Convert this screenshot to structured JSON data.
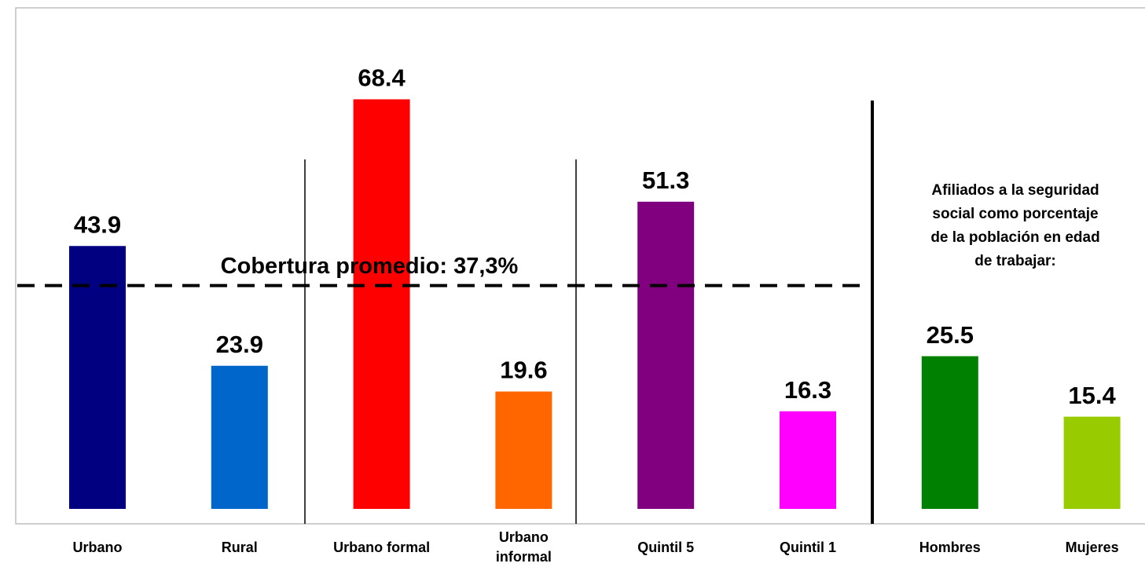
{
  "chart_data": {
    "type": "bar",
    "categories": [
      "Urbano",
      "Rural",
      "Urbano formal",
      "Urbano informal",
      "Quintil 5",
      "Quintil 1",
      "Hombres",
      "Mujeres"
    ],
    "values": [
      43.9,
      23.9,
      68.4,
      19.6,
      51.3,
      16.3,
      25.5,
      15.4
    ],
    "colors": [
      "#000080",
      "#0066cc",
      "#ff0000",
      "#ff6600",
      "#800080",
      "#ff00ff",
      "#008000",
      "#99cc00"
    ],
    "ylim": [
      0,
      80
    ],
    "reference_line": {
      "value": 37.3,
      "label": "Cobertura promedio: 37,3%"
    },
    "annotation": [
      "Afiliados a la seguridad",
      "social como porcentaje",
      "de la población en edad",
      "de trabajar:"
    ]
  }
}
